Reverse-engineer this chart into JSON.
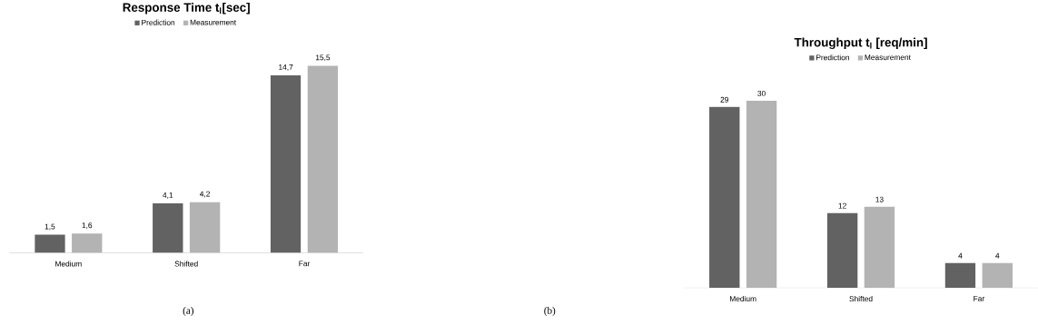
{
  "chart_data": [
    {
      "type": "bar",
      "title": "**Response Time t$_{l}$[sec]**",
      "categories": [
        "Medium",
        "Shifted",
        "Far"
      ],
      "series": [
        {
          "name": "Prediction",
          "color": "#626262",
          "values": [
            1.5,
            4.1,
            14.7
          ],
          "value_labels": [
            "1,5",
            "4,1",
            "14,7"
          ]
        },
        {
          "name": "Measurement",
          "color": "#b3b3b3",
          "values": [
            1.6,
            4.2,
            15.5
          ],
          "value_labels": [
            "1,6",
            "4,2",
            "15,5"
          ]
        }
      ],
      "legend": "top",
      "annotations": [
        "(a)"
      ]
    },
    {
      "type": "bar",
      "title": "**Throughput t$_{l}$ [req/min]**",
      "categories": [
        "Medium",
        "Shifted",
        "Far"
      ],
      "series": [
        {
          "name": "Prediction",
          "color": "#626262",
          "values": [
            29,
            12,
            4
          ],
          "value_labels": [
            "29",
            "12",
            "4"
          ]
        },
        {
          "name": "Measurement",
          "color": "#b3b3b3",
          "values": [
            30,
            13,
            4
          ],
          "value_labels": [
            "30",
            "13",
            "4"
          ]
        }
      ],
      "legend": "top",
      "annotations": [
        "(b)"
      ]
    }
  ]
}
